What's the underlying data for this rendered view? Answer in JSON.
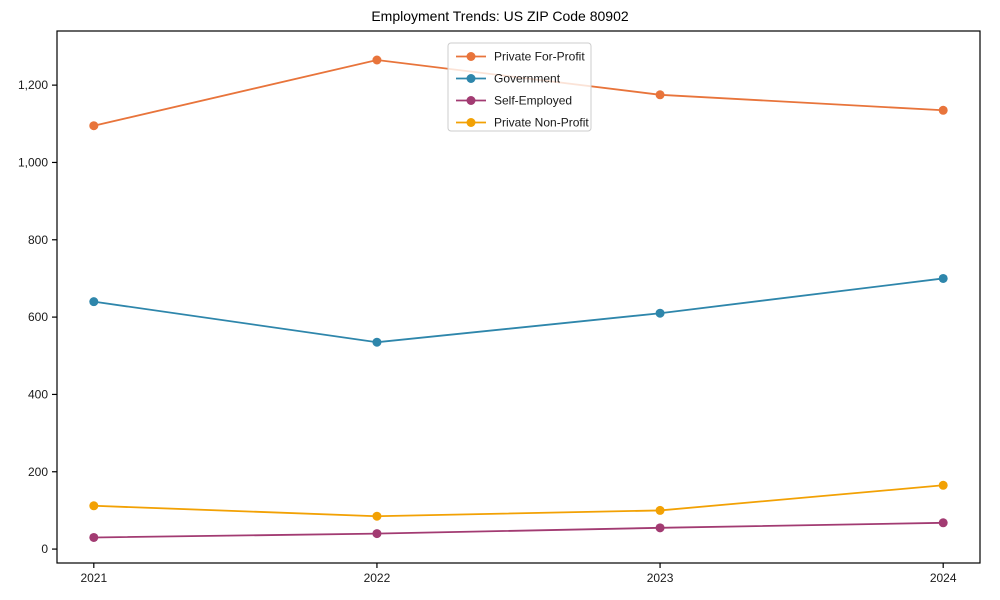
{
  "chart_data": {
    "type": "line",
    "title": "Employment Trends: US ZIP Code 80902",
    "x": [
      2021,
      2022,
      2023,
      2024
    ],
    "x_tick_labels": [
      "2021",
      "2022",
      "2023",
      "2024"
    ],
    "y_ticks": [
      0,
      200,
      400,
      600,
      800,
      1000,
      1200
    ],
    "y_tick_labels": [
      "0",
      "200",
      "400",
      "600",
      "800",
      "1,000",
      "1,200"
    ],
    "xlim": [
      2020.87,
      2024.13
    ],
    "ylim": [
      -36,
      1340
    ],
    "grid": false,
    "legend_position": "upper center-left inside plot",
    "series": [
      {
        "name": "Private For-Profit",
        "color": "#E8743B",
        "values": [
          1095,
          1265,
          1175,
          1135
        ]
      },
      {
        "name": "Government",
        "color": "#2E86AB",
        "values": [
          640,
          535,
          610,
          700
        ]
      },
      {
        "name": "Self-Employed",
        "color": "#A23B72",
        "values": [
          30,
          40,
          55,
          68
        ]
      },
      {
        "name": "Private Non-Profit",
        "color": "#F2A104",
        "values": [
          112,
          85,
          100,
          165
        ]
      }
    ],
    "axis_color": "#000000",
    "text_color": "#1a1a1a",
    "legend_border_color": "#cccccc",
    "legend_background": "rgba(255,255,255,0.8)"
  }
}
